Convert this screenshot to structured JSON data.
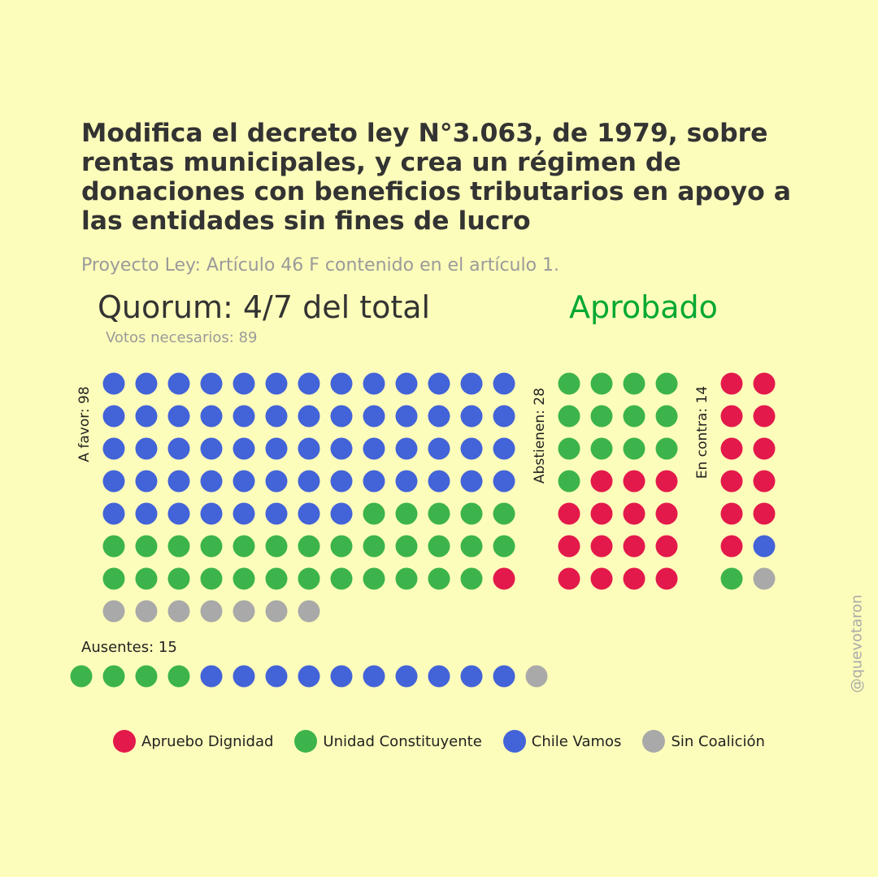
{
  "title": "Modifica el decreto ley N°3.063, de 1979, sobre rentas municipales, y crea un régimen de donaciones con beneficios tributarios en apoyo a las entidades sin fines de lucro",
  "subtitle": "Proyecto Ley: Artículo 46 F contenido en el artículo 1.",
  "quorum": "Quorum: 4/7 del total",
  "result": "Aprobado",
  "result_color": "#00a832",
  "votes_needed": "Votos necesarios: 89",
  "labels": {
    "favor": "A favor: 98",
    "abstain": "Abstienen: 28",
    "against": "En contra: 14",
    "absent": "Ausentes: 15"
  },
  "handle": "@quevotaron",
  "coalitions": [
    {
      "key": "AD",
      "name": "Apruebo Dignidad",
      "color": "#e3194b"
    },
    {
      "key": "UC",
      "name": "Unidad Constituyente",
      "color": "#3cb44b"
    },
    {
      "key": "CV",
      "name": "Chile Vamos",
      "color": "#4363d8"
    },
    {
      "key": "SC",
      "name": "Sin Coalición",
      "color": "#a9a9a9"
    }
  ],
  "chart_data": {
    "type": "waffle",
    "groups": [
      {
        "label": "A favor",
        "total": 98,
        "counts": {
          "CV": 60,
          "UC": 30,
          "AD": 1,
          "SC": 7
        }
      },
      {
        "label": "Abstienen",
        "total": 28,
        "counts": {
          "UC": 13,
          "AD": 15
        }
      },
      {
        "label": "En contra",
        "total": 14,
        "counts": {
          "AD": 11,
          "CV": 1,
          "UC": 1,
          "SC": 1
        }
      },
      {
        "label": "Ausentes",
        "total": 15,
        "counts": {
          "UC": 4,
          "CV": 10,
          "SC": 1
        }
      }
    ]
  }
}
